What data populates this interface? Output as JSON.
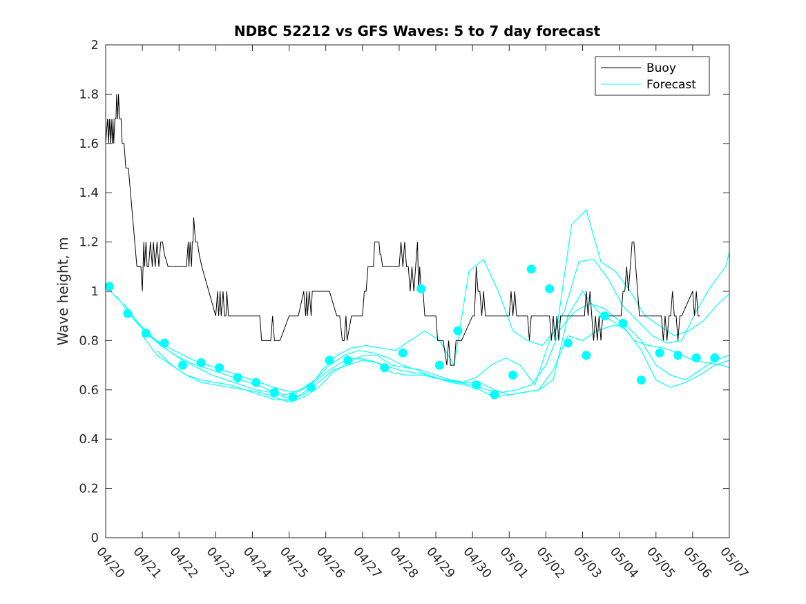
{
  "chart_data": {
    "type": "line",
    "title": "NDBC 52212 vs GFS Waves: 5 to 7 day forecast",
    "xlabel": "",
    "ylabel": "Wave height, m",
    "xlim": [
      0,
      17
    ],
    "ylim": [
      0,
      2
    ],
    "yticks": [
      0,
      0.2,
      0.4,
      0.6,
      0.8,
      1,
      1.2,
      1.4,
      1.6,
      1.8,
      2
    ],
    "ytick_labels": [
      "0",
      "0.2",
      "0.4",
      "0.6",
      "0.8",
      "1",
      "1.2",
      "1.4",
      "1.6",
      "1.8",
      "2"
    ],
    "xticks": [
      0,
      1,
      2,
      3,
      4,
      5,
      6,
      7,
      8,
      9,
      10,
      11,
      12,
      13,
      14,
      15,
      16,
      17
    ],
    "xtick_labels": [
      "04/20",
      "04/21",
      "04/22",
      "04/23",
      "04/24",
      "04/25",
      "04/26",
      "04/27",
      "04/28",
      "04/29",
      "04/30",
      "05/01",
      "05/02",
      "05/03",
      "05/04",
      "05/05",
      "05/06",
      "05/07"
    ],
    "x_unit": "days since 04/20",
    "grid": false,
    "legend": {
      "position": "top-right",
      "entries": [
        "Buoy",
        "Forecast"
      ]
    },
    "colors": {
      "buoy": "#000000",
      "forecast": "#00ffff"
    },
    "series": [
      {
        "name": "Buoy",
        "style": "line",
        "x": [
          0.0,
          0.05,
          0.08,
          0.1,
          0.13,
          0.15,
          0.18,
          0.2,
          0.22,
          0.25,
          0.28,
          0.3,
          0.33,
          0.35,
          0.38,
          0.42,
          0.45,
          0.5,
          0.55,
          0.62,
          0.85,
          0.96,
          1.0,
          1.04,
          1.06,
          1.1,
          1.13,
          1.17,
          1.22,
          1.27,
          1.3,
          1.35,
          1.4,
          1.45,
          1.5,
          1.55,
          1.6,
          1.7,
          2.0,
          2.2,
          2.25,
          2.27,
          2.3,
          2.34,
          2.36,
          2.38,
          2.4,
          2.45,
          2.5,
          2.55,
          2.62,
          3.0,
          3.05,
          3.08,
          3.12,
          3.15,
          3.2,
          3.24,
          3.28,
          3.3,
          3.35,
          3.38,
          4.0,
          4.2,
          4.25,
          4.5,
          4.55,
          4.6,
          4.65,
          4.7,
          4.75,
          5.0,
          5.25,
          5.4,
          5.45,
          5.48,
          5.5,
          5.55,
          5.6,
          5.63,
          5.7,
          5.75,
          5.8,
          6.0,
          6.1,
          6.3,
          6.35,
          6.38,
          6.45,
          6.5,
          6.55,
          6.58,
          6.7,
          7.0,
          7.05,
          7.1,
          7.15,
          7.3,
          7.33,
          7.36,
          7.38,
          7.4,
          7.45,
          7.48,
          7.5,
          7.55,
          7.58,
          7.65,
          8.0,
          8.05,
          8.1,
          8.15,
          8.2,
          8.25,
          8.3,
          8.35,
          8.4,
          8.45,
          8.5,
          8.53,
          8.56,
          8.6,
          8.65,
          8.7,
          9.0,
          9.05,
          9.1,
          9.15,
          9.2,
          9.3,
          9.35,
          9.4,
          9.5,
          9.55,
          9.6,
          9.65,
          9.7,
          10.0,
          10.05,
          10.08,
          10.1,
          10.15,
          10.2,
          10.25,
          10.3,
          10.35,
          10.4,
          10.45,
          10.5,
          10.55,
          10.6,
          10.65,
          10.7,
          11.0,
          11.05,
          11.1,
          11.15,
          11.2,
          11.25,
          11.3,
          11.35,
          11.4,
          11.45,
          11.5,
          11.55,
          11.6,
          11.65,
          11.7,
          12.0,
          12.05,
          12.1,
          12.15,
          12.2,
          12.25,
          12.3,
          12.35,
          12.4,
          12.45,
          12.5,
          12.55,
          12.6,
          12.65,
          12.7,
          12.75,
          13.0,
          13.05,
          13.1,
          13.15,
          13.2,
          13.25,
          13.3,
          13.35,
          13.4,
          13.45,
          13.5,
          13.55,
          13.6,
          13.65,
          13.7,
          14.0,
          14.05,
          14.1,
          14.15,
          14.2,
          14.25,
          14.3,
          14.35,
          14.4,
          14.45,
          14.5,
          14.55,
          14.6,
          14.65,
          14.7,
          15.0,
          15.05,
          15.1,
          15.15,
          15.2,
          15.25,
          15.3,
          15.35,
          15.4,
          15.45,
          15.5,
          15.55,
          15.6,
          15.65,
          15.7,
          16.0,
          16.05,
          16.1,
          16.15,
          16.2
        ],
        "y": [
          1.6,
          1.7,
          1.6,
          1.7,
          1.6,
          1.7,
          1.6,
          1.7,
          1.6,
          1.7,
          1.7,
          1.8,
          1.7,
          1.8,
          1.7,
          1.7,
          1.6,
          1.6,
          1.5,
          1.5,
          1.1,
          1.1,
          1.0,
          1.2,
          1.1,
          1.2,
          1.1,
          1.1,
          1.2,
          1.1,
          1.2,
          1.1,
          1.2,
          1.1,
          1.2,
          1.2,
          1.15,
          1.1,
          1.1,
          1.1,
          1.2,
          1.1,
          1.2,
          1.1,
          1.2,
          1.2,
          1.3,
          1.2,
          1.2,
          1.15,
          1.1,
          0.9,
          1.0,
          0.9,
          1.0,
          0.9,
          1.0,
          0.9,
          0.9,
          1.0,
          0.9,
          0.9,
          0.9,
          0.9,
          0.8,
          0.8,
          0.9,
          0.8,
          0.8,
          0.8,
          0.8,
          0.9,
          0.9,
          1.0,
          0.9,
          1.0,
          0.9,
          1.0,
          0.9,
          1.0,
          1.0,
          1.0,
          1.0,
          1.0,
          1.0,
          0.9,
          0.9,
          0.9,
          0.8,
          0.8,
          0.9,
          0.8,
          0.9,
          0.9,
          1.0,
          1.0,
          1.1,
          1.1,
          1.2,
          1.2,
          1.2,
          1.2,
          1.2,
          1.15,
          1.15,
          1.1,
          1.1,
          1.1,
          1.1,
          1.2,
          1.1,
          1.2,
          1.1,
          1.1,
          1.0,
          1.1,
          1.0,
          1.1,
          1.2,
          1.0,
          1.1,
          1.0,
          1.0,
          0.9,
          0.9,
          0.8,
          0.8,
          0.8,
          0.8,
          0.7,
          0.8,
          0.7,
          0.7,
          0.8,
          0.8,
          0.8,
          0.8,
          0.9,
          0.9,
          1.0,
          1.1,
          1.0,
          1.0,
          0.9,
          1.0,
          0.9,
          0.9,
          0.9,
          0.9,
          0.9,
          0.9,
          0.9,
          0.9,
          0.9,
          1.0,
          0.9,
          1.0,
          0.9,
          0.9,
          0.9,
          0.9,
          0.9,
          0.9,
          0.9,
          0.8,
          0.9,
          0.9,
          0.9,
          0.9,
          0.9,
          0.9,
          0.8,
          0.9,
          0.8,
          0.9,
          0.8,
          0.9,
          0.9,
          0.9,
          0.9,
          0.9,
          0.9,
          0.9,
          0.9,
          0.9,
          0.9,
          1.0,
          0.9,
          1.0,
          0.9,
          0.8,
          0.9,
          0.8,
          0.9,
          0.8,
          0.9,
          0.9,
          0.9,
          0.9,
          0.9,
          0.9,
          1.0,
          1.0,
          1.1,
          1.0,
          1.1,
          1.2,
          1.2,
          1.1,
          1.0,
          0.9,
          0.9,
          0.9,
          0.9,
          0.9,
          0.9,
          0.9,
          0.9,
          0.8,
          0.9,
          0.8,
          0.9,
          0.9,
          1.0,
          0.9,
          0.9,
          0.8,
          0.9,
          0.9,
          1.0,
          0.9,
          1.0,
          0.9,
          0.9
        ]
      },
      {
        "name": "Forecast",
        "style": "markers",
        "x": [
          0.1,
          0.6,
          1.1,
          1.6,
          2.1,
          2.6,
          3.1,
          3.6,
          4.1,
          4.6,
          5.1,
          5.6,
          6.1,
          6.6,
          7.6,
          8.1,
          8.6,
          9.1,
          9.6,
          10.1,
          10.6,
          11.1,
          11.6,
          12.1,
          12.6,
          13.1,
          13.6,
          14.1,
          14.6,
          15.1,
          15.6,
          16.1,
          16.6
        ],
        "y": [
          1.02,
          0.91,
          0.83,
          0.79,
          0.7,
          0.71,
          0.69,
          0.65,
          0.63,
          0.59,
          0.57,
          0.61,
          0.72,
          0.72,
          0.69,
          0.75,
          1.01,
          0.7,
          0.84,
          0.62,
          0.58,
          0.66,
          1.09,
          1.01,
          0.79,
          0.74,
          0.9,
          0.87,
          0.64,
          0.75,
          0.74,
          0.73,
          0.73
        ]
      },
      {
        "name": "",
        "style": "forecast-line",
        "x": [
          0.0,
          0.4,
          0.8,
          1.2,
          1.6,
          2.0,
          2.4,
          2.8,
          3.2,
          3.6,
          4.0,
          4.4,
          4.8,
          5.2,
          5.6,
          6.0,
          6.4,
          6.8,
          7.2,
          7.6,
          8.0,
          8.4,
          8.8,
          9.2,
          9.6,
          10.0,
          10.4,
          10.8,
          11.2,
          11.6,
          12.0,
          12.4,
          12.8,
          13.2,
          13.6,
          14.0,
          14.4,
          14.8,
          15.2,
          15.6,
          16.0,
          16.4,
          16.8,
          17.0
        ],
        "y": [
          1.02,
          0.96,
          0.88,
          0.82,
          0.78,
          0.75,
          0.72,
          0.7,
          0.68,
          0.66,
          0.64,
          0.62,
          0.6,
          0.59,
          0.62,
          0.67,
          0.71,
          0.73,
          0.72,
          0.7,
          0.68,
          0.67,
          0.66,
          0.64,
          0.63,
          0.62,
          0.6,
          0.59,
          0.6,
          0.62,
          0.7,
          0.85,
          0.92,
          0.95,
          0.93,
          0.88,
          0.8,
          0.78,
          0.77,
          0.75,
          0.72,
          0.71,
          0.7,
          0.69
        ]
      },
      {
        "name": "",
        "style": "forecast-line",
        "x": [
          0.3,
          0.7,
          1.1,
          1.5,
          1.9,
          2.3,
          2.7,
          3.1,
          3.5,
          3.9,
          4.3,
          4.7,
          5.1,
          5.5,
          5.9,
          6.3,
          6.7,
          7.1,
          7.5,
          7.9,
          8.3,
          8.7,
          9.1,
          9.5,
          9.9,
          10.3,
          10.7,
          11.1,
          11.5,
          11.9,
          12.3,
          12.7,
          13.1,
          13.5,
          13.9,
          14.3,
          14.7,
          15.1,
          15.5,
          15.9,
          16.3,
          16.7,
          17.0
        ],
        "y": [
          0.98,
          0.9,
          0.83,
          0.78,
          0.74,
          0.71,
          0.69,
          0.67,
          0.65,
          0.63,
          0.61,
          0.58,
          0.56,
          0.6,
          0.68,
          0.74,
          0.77,
          0.78,
          0.77,
          0.76,
          0.8,
          0.84,
          0.8,
          0.7,
          1.08,
          1.13,
          1.0,
          0.84,
          0.8,
          0.78,
          0.85,
          1.27,
          1.33,
          1.12,
          1.08,
          1.0,
          0.9,
          0.86,
          0.82,
          0.84,
          0.88,
          0.95,
          0.99
        ]
      },
      {
        "name": "",
        "style": "forecast-line",
        "x": [
          0.5,
          0.9,
          1.3,
          1.7,
          2.1,
          2.5,
          2.9,
          3.3,
          3.7,
          4.1,
          4.5,
          4.9,
          5.3,
          5.7,
          6.1,
          6.5,
          6.9,
          7.3,
          7.7,
          8.1,
          8.5,
          8.9,
          9.3,
          9.7,
          10.1,
          10.5,
          10.9,
          11.3,
          11.7,
          12.1,
          12.5,
          12.9,
          13.3,
          13.7,
          14.1,
          14.5,
          14.9,
          15.3,
          15.7,
          16.1,
          16.5,
          16.9,
          17.0
        ],
        "y": [
          0.95,
          0.87,
          0.81,
          0.76,
          0.72,
          0.69,
          0.66,
          0.64,
          0.62,
          0.6,
          0.59,
          0.58,
          0.6,
          0.64,
          0.7,
          0.74,
          0.76,
          0.75,
          0.73,
          0.7,
          0.68,
          0.65,
          0.64,
          0.63,
          0.65,
          0.7,
          0.73,
          0.7,
          0.62,
          0.8,
          0.92,
          1.12,
          1.13,
          1.05,
          0.94,
          0.88,
          0.82,
          0.79,
          0.8,
          0.92,
          1.02,
          1.1,
          1.16
        ]
      },
      {
        "name": "",
        "style": "forecast-line",
        "x": [
          1.0,
          1.4,
          1.8,
          2.2,
          2.6,
          3.0,
          3.4,
          3.8,
          4.2,
          4.6,
          5.0,
          5.4,
          5.8,
          6.2,
          6.6,
          7.0,
          7.4,
          7.8,
          8.2,
          8.6,
          9.0,
          9.4,
          9.8,
          10.2,
          10.6,
          11.0,
          11.4,
          11.8,
          12.2,
          12.6,
          13.0,
          13.4,
          13.8,
          14.2,
          14.6,
          15.0,
          15.4,
          15.8,
          16.2,
          16.6,
          17.0
        ],
        "y": [
          0.82,
          0.74,
          0.7,
          0.66,
          0.64,
          0.63,
          0.62,
          0.6,
          0.58,
          0.56,
          0.56,
          0.58,
          0.63,
          0.68,
          0.7,
          0.72,
          0.71,
          0.67,
          0.66,
          0.66,
          0.65,
          0.63,
          0.62,
          0.6,
          0.57,
          0.58,
          0.59,
          0.6,
          0.68,
          0.82,
          0.8,
          0.84,
          0.86,
          0.86,
          0.8,
          0.7,
          0.66,
          0.64,
          0.68,
          0.72,
          0.74
        ]
      },
      {
        "name": "",
        "style": "forecast-line",
        "x": [
          1.4,
          1.8,
          2.2,
          2.6,
          3.0,
          3.4,
          3.8,
          4.2,
          4.6,
          5.0,
          5.4,
          5.8,
          6.2,
          6.6,
          7.0,
          7.4,
          7.8,
          8.2,
          8.6,
          9.0,
          9.4,
          9.8,
          10.2,
          10.6,
          11.0,
          11.4,
          11.8,
          12.2,
          12.6,
          13.0,
          13.4,
          13.8,
          14.2,
          14.6,
          15.0,
          15.4,
          15.8,
          16.2,
          16.6,
          17.0
        ],
        "y": [
          0.76,
          0.7,
          0.66,
          0.63,
          0.62,
          0.61,
          0.6,
          0.59,
          0.57,
          0.55,
          0.57,
          0.61,
          0.67,
          0.71,
          0.74,
          0.74,
          0.7,
          0.69,
          0.68,
          0.66,
          0.64,
          0.63,
          0.63,
          0.6,
          0.58,
          0.59,
          0.6,
          0.64,
          0.9,
          1.0,
          0.92,
          0.88,
          0.84,
          0.76,
          0.64,
          0.61,
          0.63,
          0.66,
          0.7,
          0.72
        ]
      }
    ]
  }
}
